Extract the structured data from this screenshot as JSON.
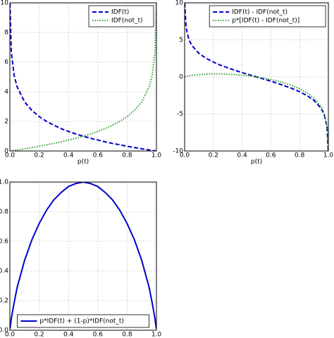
{
  "chart_data": [
    {
      "type": "line",
      "xlabel": "p(t)",
      "x": [
        0.001,
        0.01,
        0.03,
        0.05,
        0.1,
        0.15,
        0.2,
        0.25,
        0.3,
        0.35,
        0.4,
        0.45,
        0.5,
        0.55,
        0.6,
        0.65,
        0.7,
        0.75,
        0.8,
        0.85,
        0.9,
        0.95,
        0.97,
        0.99,
        0.999
      ],
      "series": [
        {
          "name": "IDF(t)",
          "color": "#0000cc",
          "linestyle": "dashed",
          "values": [
            9.97,
            6.64,
            5.06,
            4.32,
            3.32,
            2.74,
            2.32,
            2.0,
            1.74,
            1.51,
            1.32,
            1.15,
            1.0,
            0.86,
            0.74,
            0.62,
            0.51,
            0.42,
            0.32,
            0.23,
            0.15,
            0.07,
            0.04,
            0.01,
            0.0
          ]
        },
        {
          "name": "IDF(not_t)",
          "color": "#2ca02c",
          "linestyle": "dotted",
          "values": [
            0.0,
            0.01,
            0.04,
            0.07,
            0.15,
            0.23,
            0.32,
            0.42,
            0.51,
            0.62,
            0.74,
            0.86,
            1.0,
            1.15,
            1.32,
            1.51,
            1.74,
            2.0,
            2.32,
            2.74,
            3.32,
            4.32,
            5.06,
            6.64,
            9.97
          ]
        }
      ],
      "xlim": [
        0,
        1
      ],
      "ylim": [
        0,
        10
      ],
      "xticks": [
        {
          "value": 0,
          "label": "0.0"
        },
        {
          "value": 0.2,
          "label": "0.2"
        },
        {
          "value": 0.4,
          "label": "0.4"
        },
        {
          "value": 0.6,
          "label": "0.6"
        },
        {
          "value": 0.8,
          "label": "0.8"
        },
        {
          "value": 1,
          "label": "1.0"
        }
      ],
      "yticks": [
        0,
        2,
        4,
        6,
        8,
        10
      ],
      "grid": true,
      "legend": "upper right"
    },
    {
      "type": "line",
      "xlabel": "p(t)",
      "x": [
        0.001,
        0.01,
        0.03,
        0.05,
        0.1,
        0.15,
        0.2,
        0.25,
        0.3,
        0.35,
        0.4,
        0.45,
        0.5,
        0.55,
        0.6,
        0.65,
        0.7,
        0.75,
        0.8,
        0.85,
        0.9,
        0.95,
        0.97,
        0.99,
        0.999
      ],
      "series": [
        {
          "name": "IDF(t) - IDF(not_t)",
          "color": "#0000cc",
          "linestyle": "dashed",
          "values": [
            9.97,
            6.63,
            5.02,
            4.25,
            3.17,
            2.51,
            2.0,
            1.58,
            1.23,
            0.89,
            0.58,
            0.29,
            0,
            -0.29,
            -0.58,
            -0.89,
            -1.23,
            -1.58,
            -2.0,
            -2.51,
            -3.17,
            -4.25,
            -5.02,
            -6.63,
            -9.97
          ]
        },
        {
          "name": "p*[IDF(t) - IDF(not_t)]",
          "color": "#2ca02c",
          "linestyle": "dotted",
          "values": [
            0.01,
            0.07,
            0.15,
            0.21,
            0.32,
            0.38,
            0.4,
            0.4,
            0.37,
            0.31,
            0.23,
            0.13,
            0,
            -0.16,
            -0.35,
            -0.58,
            -0.86,
            -1.19,
            -1.6,
            -2.13,
            -2.85,
            -4.04,
            -4.87,
            -6.56,
            -9.96
          ]
        }
      ],
      "xlim": [
        0,
        1
      ],
      "ylim": [
        -10,
        10
      ],
      "xticks": [
        {
          "value": 0,
          "label": "0.0"
        },
        {
          "value": 0.2,
          "label": "0.2"
        },
        {
          "value": 0.4,
          "label": "0.4"
        },
        {
          "value": 0.6,
          "label": "0.6"
        },
        {
          "value": 0.8,
          "label": "0.8"
        },
        {
          "value": 1,
          "label": "1.0"
        }
      ],
      "yticks": [
        -10,
        -5,
        0,
        5,
        10
      ],
      "grid": true,
      "legend": "upper right"
    },
    {
      "type": "line",
      "x": [
        0.001,
        0.01,
        0.03,
        0.05,
        0.1,
        0.15,
        0.2,
        0.25,
        0.3,
        0.35,
        0.4,
        0.45,
        0.5,
        0.55,
        0.6,
        0.65,
        0.7,
        0.75,
        0.8,
        0.85,
        0.9,
        0.95,
        0.97,
        0.99,
        0.999
      ],
      "series": [
        {
          "name": "p*IDF(t) + (1-p)*IDF(not_t)",
          "color": "#0000cc",
          "linestyle": "solid",
          "values": [
            0.01,
            0.08,
            0.19,
            0.29,
            0.47,
            0.61,
            0.72,
            0.81,
            0.88,
            0.93,
            0.97,
            0.99,
            1.0,
            0.99,
            0.97,
            0.93,
            0.88,
            0.81,
            0.72,
            0.61,
            0.47,
            0.29,
            0.19,
            0.08,
            0.01
          ]
        }
      ],
      "xlim": [
        0,
        1
      ],
      "ylim": [
        0,
        1
      ],
      "xticks": [
        {
          "value": 0,
          "label": "0.0"
        },
        {
          "value": 0.2,
          "label": "0.2"
        },
        {
          "value": 0.4,
          "label": "0.4"
        },
        {
          "value": 0.6,
          "label": "0.6"
        },
        {
          "value": 0.8,
          "label": "0.8"
        },
        {
          "value": 1,
          "label": "1.0"
        }
      ],
      "yticks": [
        {
          "value": 0,
          "label": "0.0"
        },
        {
          "value": 0.2,
          "label": "0.2"
        },
        {
          "value": 0.4,
          "label": "0.4"
        },
        {
          "value": 0.6,
          "label": "0.6"
        },
        {
          "value": 0.8,
          "label": "0.8"
        },
        {
          "value": 1,
          "label": "1.0"
        }
      ],
      "grid": true,
      "legend": "lower center"
    }
  ]
}
